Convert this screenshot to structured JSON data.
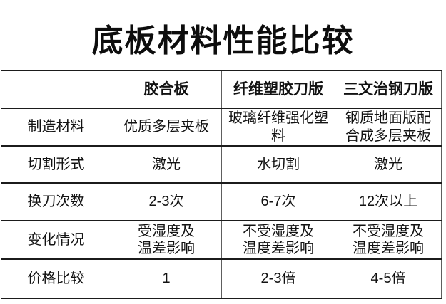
{
  "title": "底板材料性能比较",
  "table": {
    "columns": [
      "",
      "胶合板",
      "纤维塑胶刀版",
      "三文治钢刀版"
    ],
    "rows": [
      {
        "label": "制造材料",
        "cells": [
          "优质多层夹板",
          "玻璃纤维强化塑料",
          "钢质地面版配\n合成多层夹板"
        ]
      },
      {
        "label": "切割形式",
        "cells": [
          "激光",
          "水切割",
          "激光"
        ]
      },
      {
        "label": "换刀次数",
        "cells": [
          "2-3次",
          "6-7次",
          "12次以上"
        ]
      },
      {
        "label": "变化情况",
        "cells": [
          "受湿度及\n温差影响",
          "不受湿度及\n温度差影响",
          "不受湿度及\n温度差影响"
        ]
      },
      {
        "label": "价格比较",
        "cells": [
          "1",
          "2-3倍",
          "4-5倍"
        ]
      }
    ]
  },
  "colors": {
    "background": "#ffffff",
    "text": "#121212",
    "title_text": "#0d0d0d",
    "grid_horizontal": "#1b1b1b",
    "grid_vertical": "#5e5e5e"
  }
}
